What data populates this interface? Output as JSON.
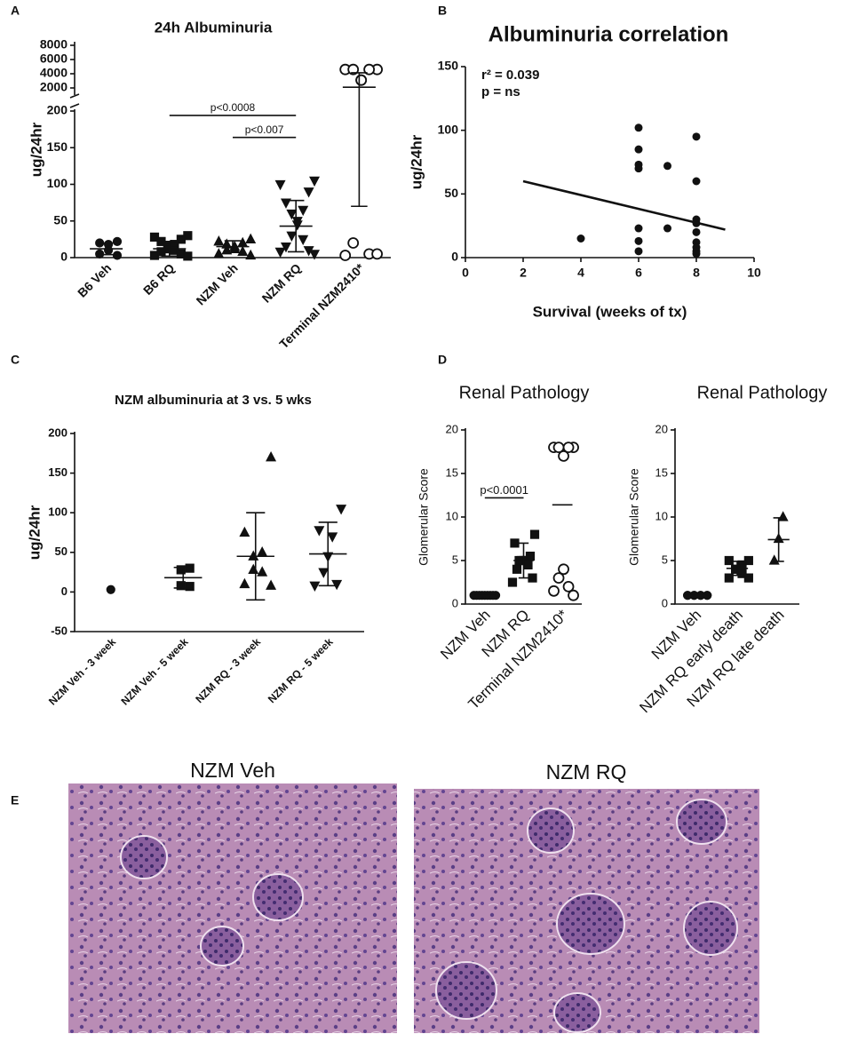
{
  "panel_labels": [
    "A",
    "B",
    "C",
    "D",
    "E"
  ],
  "chart_data": [
    {
      "type": "dot",
      "title": "24h Albuminuria",
      "ylabel": "ug/24hr",
      "categories": [
        "B6 Veh",
        "B6 RQ",
        "NZM Veh",
        "NZM RQ",
        "Terminal NZM2410*"
      ],
      "markers": [
        "circle",
        "square",
        "triangle",
        "triangle-down",
        "circle-open"
      ],
      "points": [
        [
          22,
          20,
          18,
          10,
          5,
          3
        ],
        [
          30,
          28,
          25,
          22,
          18,
          15,
          12,
          10,
          8,
          5,
          3,
          2
        ],
        [
          25,
          22,
          20,
          18,
          15,
          12,
          10,
          8,
          5,
          3
        ],
        [
          105,
          100,
          90,
          75,
          65,
          60,
          50,
          45,
          30,
          25,
          15,
          10,
          8,
          5
        ],
        [
          4600,
          4600,
          4600,
          4600,
          3100,
          3100,
          20,
          5,
          3,
          5
        ]
      ],
      "means": [
        12,
        12,
        15,
        43,
        2100
      ],
      "sd": [
        8,
        10,
        8,
        35,
        2030
      ],
      "ylim": [
        0,
        200
      ],
      "yticks": [
        0,
        50,
        100,
        150,
        200
      ],
      "upper": {
        "ylim": [
          1000,
          8500
        ],
        "yticks": [
          2000,
          4000,
          6000,
          8000
        ]
      },
      "brackets": [
        {
          "text": "p<0.0008",
          "from": 1,
          "to": 3,
          "y": 194
        },
        {
          "text": "p<0.007",
          "from": 2,
          "to": 3,
          "y": 164
        }
      ]
    },
    {
      "type": "scatter",
      "title": "Albuminuria correlation",
      "xlabel": "Survival (weeks of tx)",
      "ylabel": "ug/24hr",
      "annotations": [
        "r² = 0.039",
        "p = ns"
      ],
      "x": [
        4,
        6,
        6,
        6,
        6,
        6,
        6,
        6,
        7,
        7,
        8,
        8,
        8,
        8,
        8,
        8,
        8,
        8,
        8
      ],
      "values": [
        15,
        102,
        85,
        73,
        70,
        23,
        13,
        5,
        72,
        23,
        95,
        60,
        30,
        27,
        20,
        12,
        8,
        5,
        3
      ],
      "fit": {
        "x": [
          2,
          9
        ],
        "values": [
          60,
          22
        ]
      },
      "xlim": [
        0,
        10
      ],
      "xticks": [
        0,
        2,
        4,
        6,
        8,
        10
      ],
      "ylim": [
        0,
        150
      ],
      "yticks": [
        0,
        50,
        100,
        150
      ]
    },
    {
      "type": "dot",
      "title": "NZM albuminuria at 3 vs. 5 wks",
      "ylabel": "ug/24hr",
      "categories": [
        "NZM Veh - 3 week",
        "NZM Veh - 5 week",
        "NZM RQ - 3 week",
        "NZM RQ - 5 week"
      ],
      "markers": [
        "circle",
        "square",
        "triangle",
        "triangle-down"
      ],
      "points": [
        [
          3
        ],
        [
          30,
          28,
          8,
          7
        ],
        [
          170,
          75,
          50,
          45,
          28,
          25,
          10,
          8
        ],
        [
          105,
          78,
          70,
          45,
          25,
          10,
          8
        ]
      ],
      "means": [
        null,
        18,
        45,
        48
      ],
      "sd": [
        null,
        13,
        55,
        40
      ],
      "ylim": [
        -50,
        200
      ],
      "yticks": [
        -50,
        0,
        50,
        100,
        150,
        200
      ]
    },
    {
      "type": "dot",
      "title": "Renal Pathology",
      "ylabel": "Glomerular Score",
      "categories": [
        "NZM Veh",
        "NZM RQ",
        "Terminal NZM2410*"
      ],
      "markers": [
        "circle",
        "square",
        "circle-open"
      ],
      "points": [
        [
          1,
          1,
          1,
          1,
          1,
          1,
          1,
          1,
          1
        ],
        [
          8,
          7,
          5.5,
          5,
          5,
          5,
          5,
          4.5,
          4,
          3,
          2.5
        ],
        [
          18,
          18,
          18,
          18,
          17,
          4,
          3,
          2,
          1.5,
          1
        ]
      ],
      "means": [
        1,
        5,
        11.4
      ],
      "sd": [
        null,
        2,
        null
      ],
      "ylim": [
        0,
        20
      ],
      "yticks": [
        0,
        5,
        10,
        15,
        20
      ],
      "brackets": [
        {
          "text": "p<0.0001",
          "from": 0,
          "to": 1,
          "y": 12.2
        }
      ]
    },
    {
      "type": "dot",
      "title": "Renal Pathology",
      "ylabel": "Glomerular Score",
      "categories": [
        "NZM Veh",
        "NZM RQ early death",
        "NZM RQ late death"
      ],
      "markers": [
        "circle",
        "square",
        "triangle"
      ],
      "points": [
        [
          1,
          1,
          1,
          1,
          1,
          1,
          1,
          1
        ],
        [
          5,
          5,
          4.5,
          4,
          4,
          3.5,
          3,
          3
        ],
        [
          10,
          7.5,
          5
        ]
      ],
      "means": [
        1,
        4.1,
        7.4
      ],
      "sd": [
        null,
        0.8,
        2.5
      ],
      "ylim": [
        0,
        20
      ],
      "yticks": [
        0,
        5,
        10,
        15,
        20
      ]
    }
  ],
  "histology": {
    "titles": [
      "NZM Veh",
      "NZM RQ"
    ]
  }
}
